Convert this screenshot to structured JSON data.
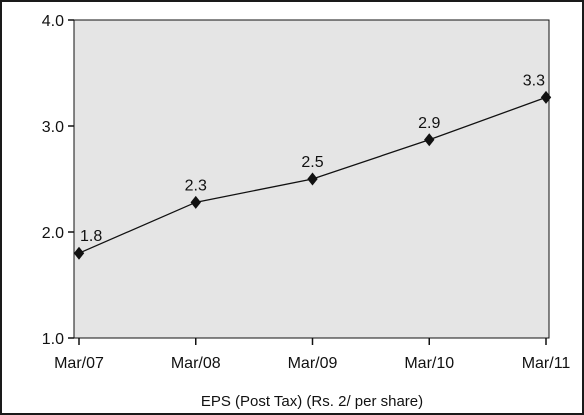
{
  "chart_data": {
    "type": "line",
    "title": "",
    "xlabel": "EPS (Post Tax) (Rs. 2/ per share)",
    "ylabel": "",
    "categories": [
      "Mar/07",
      "Mar/08",
      "Mar/09",
      "Mar/10",
      "Mar/11"
    ],
    "series": [
      {
        "values": [
          1.8,
          2.28,
          2.5,
          2.87,
          3.27
        ],
        "labels": [
          "1.8",
          "2.3",
          "2.5",
          "2.9",
          "3.3"
        ]
      }
    ],
    "ylim": [
      1.0,
      4.0
    ],
    "yticks": [
      1.0,
      2.0,
      3.0,
      4.0
    ],
    "ytick_labels": [
      "1.0",
      "2.0",
      "3.0",
      "4.0"
    ],
    "grid": false,
    "legend": "none",
    "colors": {
      "plot_background": "#e5e5e5",
      "line": "#111111",
      "marker": "#111111",
      "frame": "#1a1a1a"
    },
    "marker": "diamond"
  }
}
